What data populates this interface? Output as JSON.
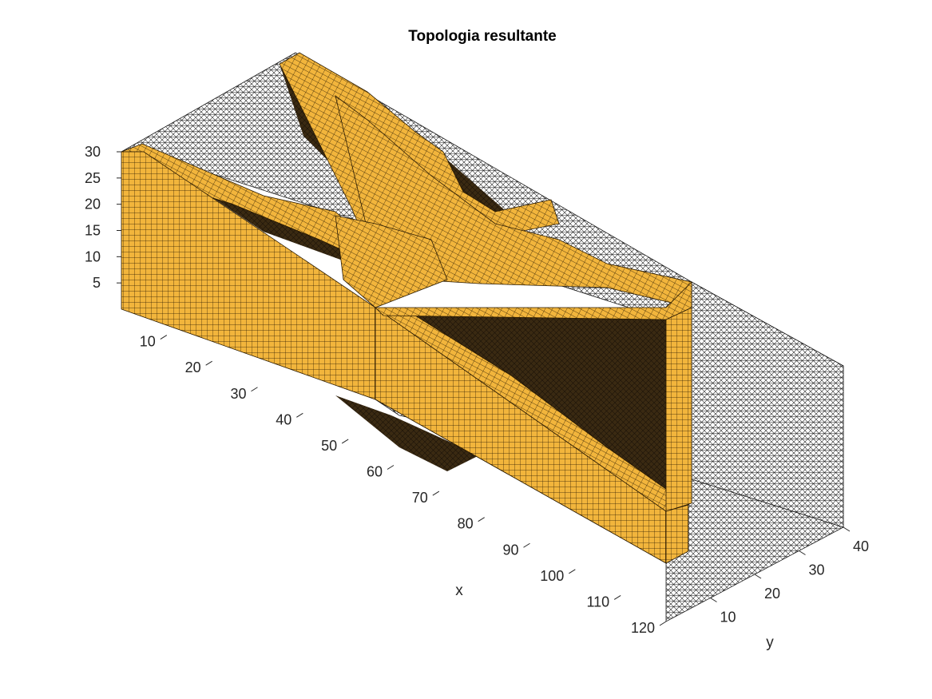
{
  "chart_data": {
    "type": "3d-voxel",
    "title": "Topologia resultante",
    "xlabel": "x",
    "ylabel": "y",
    "zlabel": "",
    "x_ticks": [
      10,
      20,
      30,
      40,
      50,
      60,
      70,
      80,
      90,
      100,
      110,
      120
    ],
    "y_ticks": [
      10,
      20,
      30,
      40
    ],
    "z_ticks": [
      5,
      10,
      15,
      20,
      25,
      30
    ],
    "xlim": [
      0,
      120
    ],
    "ylim": [
      0,
      40
    ],
    "zlim": [
      0,
      30
    ],
    "solid_color": "#f2b53c",
    "edge_color": "#000000",
    "design_domain_mesh": true
  }
}
